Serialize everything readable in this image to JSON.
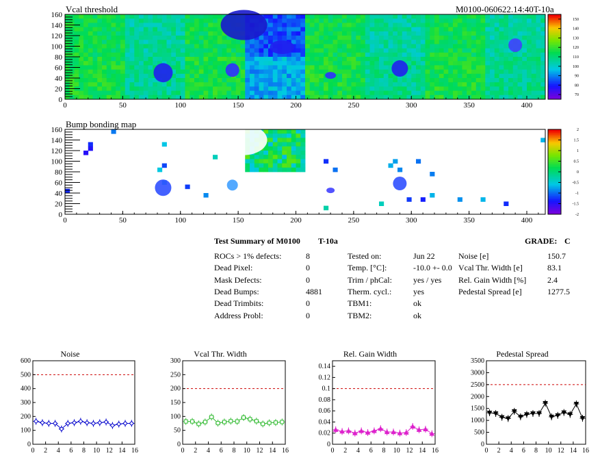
{
  "header": {
    "map1_title": "Vcal threshold",
    "module_id": "M0100-060622.14:40T-10a",
    "map2_title": "Bump bonding map"
  },
  "summary": {
    "title": "Test Summary of M0100",
    "test_id": "T-10a",
    "grade_label": "GRADE:",
    "grade": "C",
    "col1": [
      {
        "label": "ROCs > 1% defects:",
        "value": "8"
      },
      {
        "label": "Dead Pixel:",
        "value": "0"
      },
      {
        "label": "Mask Defects:",
        "value": "0"
      },
      {
        "label": "Dead Bumps:",
        "value": "4881"
      },
      {
        "label": "Dead Trimbits:",
        "value": "0"
      },
      {
        "label": "Address Probl:",
        "value": "0"
      }
    ],
    "col2": [
      {
        "label": "Tested on:",
        "value": "Jun 22"
      },
      {
        "label": "Temp. [°C]:",
        "value": "-10.0 +- 0.0"
      },
      {
        "label": "Trim / phCal:",
        "value": "yes / yes"
      },
      {
        "label": "Therm. cycl.:",
        "value": "yes"
      },
      {
        "label": "TBM1:",
        "value": "ok"
      },
      {
        "label": "TBM2:",
        "value": "ok"
      }
    ],
    "col3": [
      {
        "label": "Noise [e]",
        "value": "150.7"
      },
      {
        "label": "Vcal Thr. Width [e]",
        "value": "83.1"
      },
      {
        "label": "Rel. Gain Width [%]",
        "value": "2.4"
      },
      {
        "label": "Pedestal Spread [e]",
        "value": "1277.5"
      }
    ]
  },
  "maps": [
    {
      "type": "heatmap",
      "x_ticks": [
        "0",
        "50",
        "100",
        "150",
        "200",
        "250",
        "300",
        "350",
        "400"
      ],
      "y_ticks": [
        "0",
        "20",
        "40",
        "60",
        "80",
        "100",
        "120",
        "140",
        "160"
      ],
      "xlim": [
        0,
        416
      ],
      "ylim": [
        0,
        160
      ],
      "palette_labels": [
        "70",
        "80",
        "90",
        "100",
        "110",
        "120",
        "130",
        "140",
        "150"
      ],
      "palette_range": [
        65,
        155
      ]
    },
    {
      "type": "heatmap",
      "x_ticks": [
        "0",
        "50",
        "100",
        "150",
        "200",
        "250",
        "300",
        "350",
        "400"
      ],
      "y_ticks": [
        "0",
        "20",
        "40",
        "60",
        "80",
        "100",
        "120",
        "140",
        "160"
      ],
      "xlim": [
        0,
        416
      ],
      "ylim": [
        0,
        160
      ],
      "palette_labels": [
        "-2",
        "-1.5",
        "-1",
        "-0.5",
        "0",
        "0.5",
        "1",
        "1.5",
        "2"
      ],
      "palette_range": [
        -2,
        2
      ]
    }
  ],
  "chart_data": [
    {
      "type": "line",
      "title": "Noise",
      "x": [
        0,
        1,
        2,
        3,
        4,
        5,
        6,
        7,
        8,
        9,
        10,
        11,
        12,
        13,
        14,
        15
      ],
      "values": [
        165,
        155,
        150,
        150,
        110,
        150,
        155,
        165,
        155,
        150,
        155,
        160,
        135,
        145,
        150,
        150
      ],
      "xlim": [
        0,
        16
      ],
      "ylim": [
        0,
        600
      ],
      "threshold": 500,
      "x_ticks": [
        "0",
        "2",
        "4",
        "6",
        "8",
        "10",
        "12",
        "14",
        "16"
      ],
      "y_ticks": [
        "0",
        "100",
        "200",
        "300",
        "400",
        "500",
        "600"
      ],
      "color": "#0000cc",
      "marker": "diamond"
    },
    {
      "type": "line",
      "title": "Vcal Thr. Width",
      "x": [
        0,
        1,
        2,
        3,
        4,
        5,
        6,
        7,
        8,
        9,
        10,
        11,
        12,
        13,
        14,
        15
      ],
      "values": [
        82,
        82,
        73,
        80,
        98,
        76,
        80,
        83,
        82,
        96,
        90,
        83,
        73,
        77,
        78,
        80
      ],
      "xlim": [
        0,
        16
      ],
      "ylim": [
        0,
        300
      ],
      "threshold": 200,
      "x_ticks": [
        "0",
        "2",
        "4",
        "6",
        "8",
        "10",
        "12",
        "14",
        "16"
      ],
      "y_ticks": [
        "0",
        "50",
        "100",
        "150",
        "200",
        "250",
        "300"
      ],
      "color": "#33bb33",
      "marker": "square"
    },
    {
      "type": "line",
      "title": "Rel. Gain Width",
      "x": [
        0,
        1,
        2,
        3,
        4,
        5,
        6,
        7,
        8,
        9,
        10,
        11,
        12,
        13,
        14,
        15
      ],
      "values": [
        0.026,
        0.023,
        0.024,
        0.02,
        0.024,
        0.021,
        0.024,
        0.028,
        0.022,
        0.022,
        0.02,
        0.021,
        0.032,
        0.026,
        0.027,
        0.019
      ],
      "xlim": [
        0,
        16
      ],
      "ylim": [
        0,
        0.15
      ],
      "threshold": 0.1,
      "x_ticks": [
        "0",
        "2",
        "4",
        "6",
        "8",
        "10",
        "12",
        "14",
        "16"
      ],
      "y_ticks": [
        "0",
        "0.02",
        "0.04",
        "0.06",
        "0.08",
        "0.1",
        "0.12",
        "0.14"
      ],
      "color": "#dd22cc",
      "marker": "triangle"
    },
    {
      "type": "line",
      "title": "Pedestal Spread",
      "x": [
        0,
        1,
        2,
        3,
        4,
        5,
        6,
        7,
        8,
        9,
        10,
        11,
        12,
        13,
        14,
        15
      ],
      "values": [
        1320,
        1290,
        1130,
        1080,
        1380,
        1150,
        1250,
        1290,
        1290,
        1720,
        1150,
        1210,
        1330,
        1250,
        1690,
        1090
      ],
      "xlim": [
        0,
        16
      ],
      "ylim": [
        0,
        3500
      ],
      "threshold": 2500,
      "x_ticks": [
        "0",
        "2",
        "4",
        "6",
        "8",
        "10",
        "12",
        "14",
        "16"
      ],
      "y_ticks": [
        "0",
        "500",
        "1000",
        "1500",
        "2000",
        "2500",
        "3000",
        "3500"
      ],
      "color": "#000000",
      "marker": "triangle-down"
    }
  ],
  "colors": {
    "threshold_line": "#cc0000",
    "axis": "#000000"
  }
}
